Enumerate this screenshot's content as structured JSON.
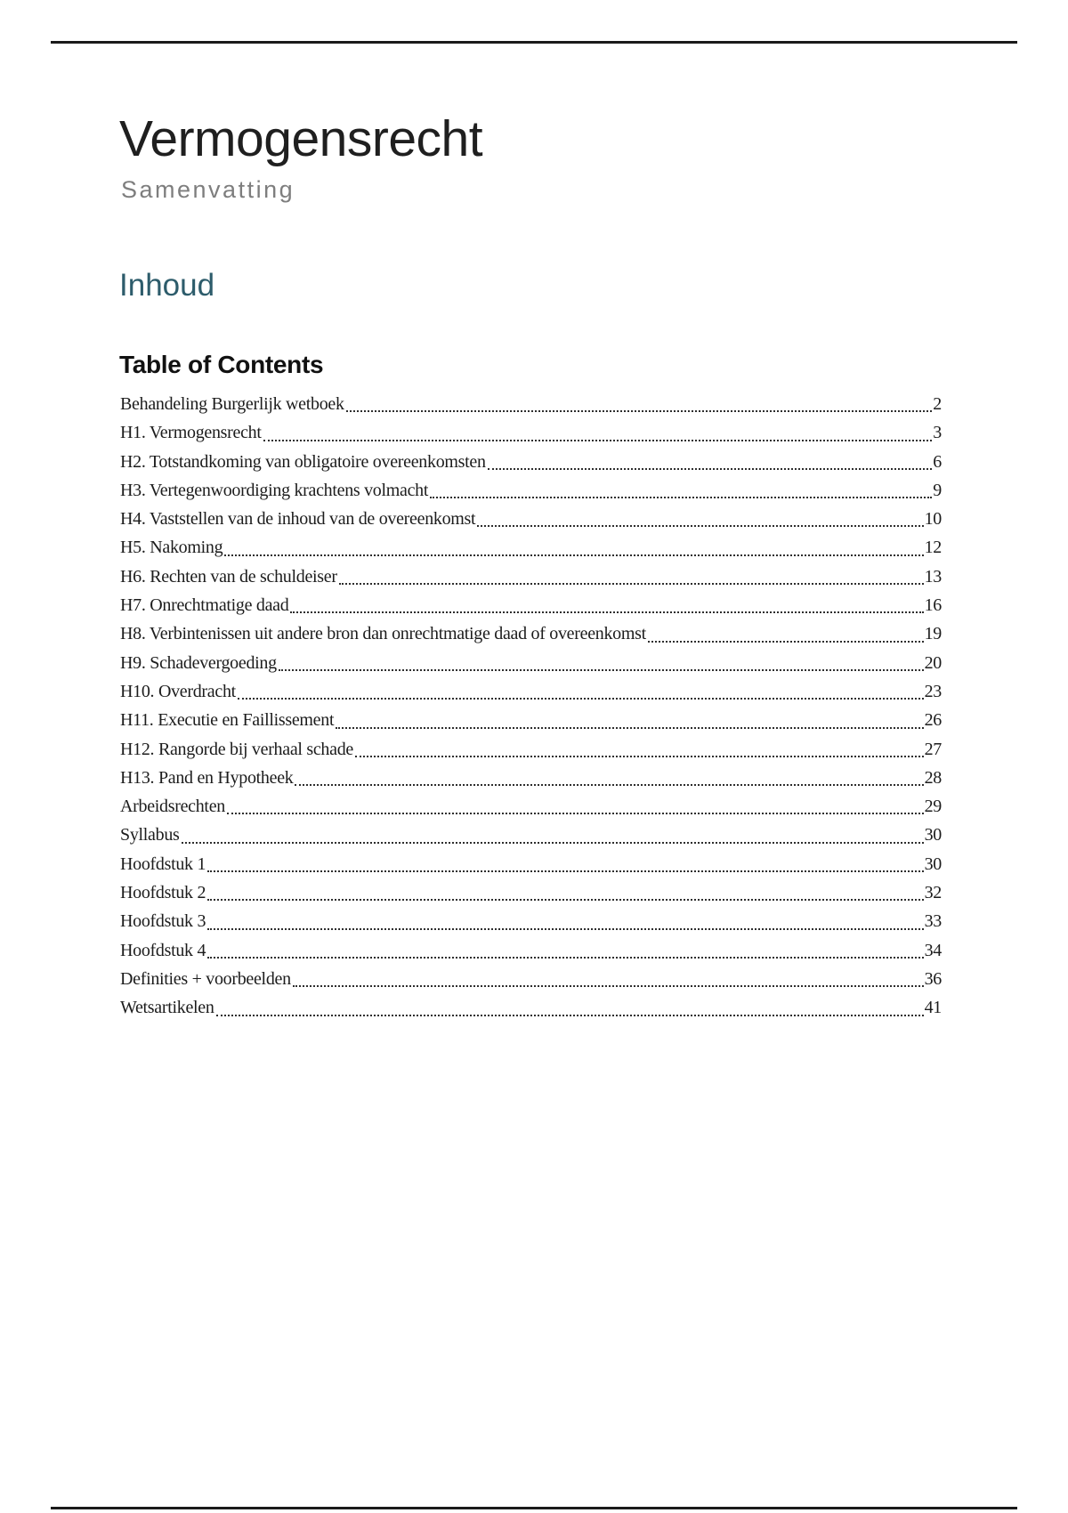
{
  "document": {
    "title": "Vermogensrecht",
    "subtitle": "Samenvatting"
  },
  "contents": {
    "section_heading": "Inhoud",
    "toc_heading": "Table of Contents",
    "items": [
      {
        "label": "Behandeling Burgerlijk wetboek",
        "page": "2"
      },
      {
        "label": "H1. Vermogensrecht",
        "page": "3"
      },
      {
        "label": "H2. Totstandkoming van obligatoire overeenkomsten",
        "page": "6"
      },
      {
        "label": "H3. Vertegenwoordiging krachtens volmacht",
        "page": "9"
      },
      {
        "label": "H4. Vaststellen van de inhoud van de overeenkomst",
        "page": "10"
      },
      {
        "label": "H5. Nakoming",
        "page": "12"
      },
      {
        "label": "H6. Rechten van de schuldeiser",
        "page": "13"
      },
      {
        "label": "H7. Onrechtmatige daad",
        "page": "16"
      },
      {
        "label": "H8. Verbintenissen uit andere bron dan onrechtmatige daad of overeenkomst",
        "page": "19"
      },
      {
        "label": "H9. Schadevergoeding",
        "page": "20"
      },
      {
        "label": "H10. Overdracht",
        "page": "23"
      },
      {
        "label": "H11. Executie en Faillissement",
        "page": "26"
      },
      {
        "label": "H12. Rangorde bij verhaal schade",
        "page": "27"
      },
      {
        "label": "H13. Pand en Hypotheek",
        "page": "28"
      },
      {
        "label": "Arbeidsrechten",
        "page": "29"
      },
      {
        "label": "Syllabus",
        "page": "30"
      },
      {
        "label": "Hoofdstuk 1",
        "page": "30"
      },
      {
        "label": "Hoofdstuk 2",
        "page": "32"
      },
      {
        "label": "Hoofdstuk 3",
        "page": "33"
      },
      {
        "label": "Hoofdstuk 4",
        "page": "34"
      },
      {
        "label": "Definities + voorbeelden",
        "page": "36"
      },
      {
        "label": "Wetsartikelen",
        "page": "41"
      }
    ]
  },
  "colors": {
    "section_heading_teal": "#2d5c6b",
    "subtitle_gray": "#7e7e7e",
    "text": "#1c1c1c",
    "rule": "#1a1a1a"
  }
}
